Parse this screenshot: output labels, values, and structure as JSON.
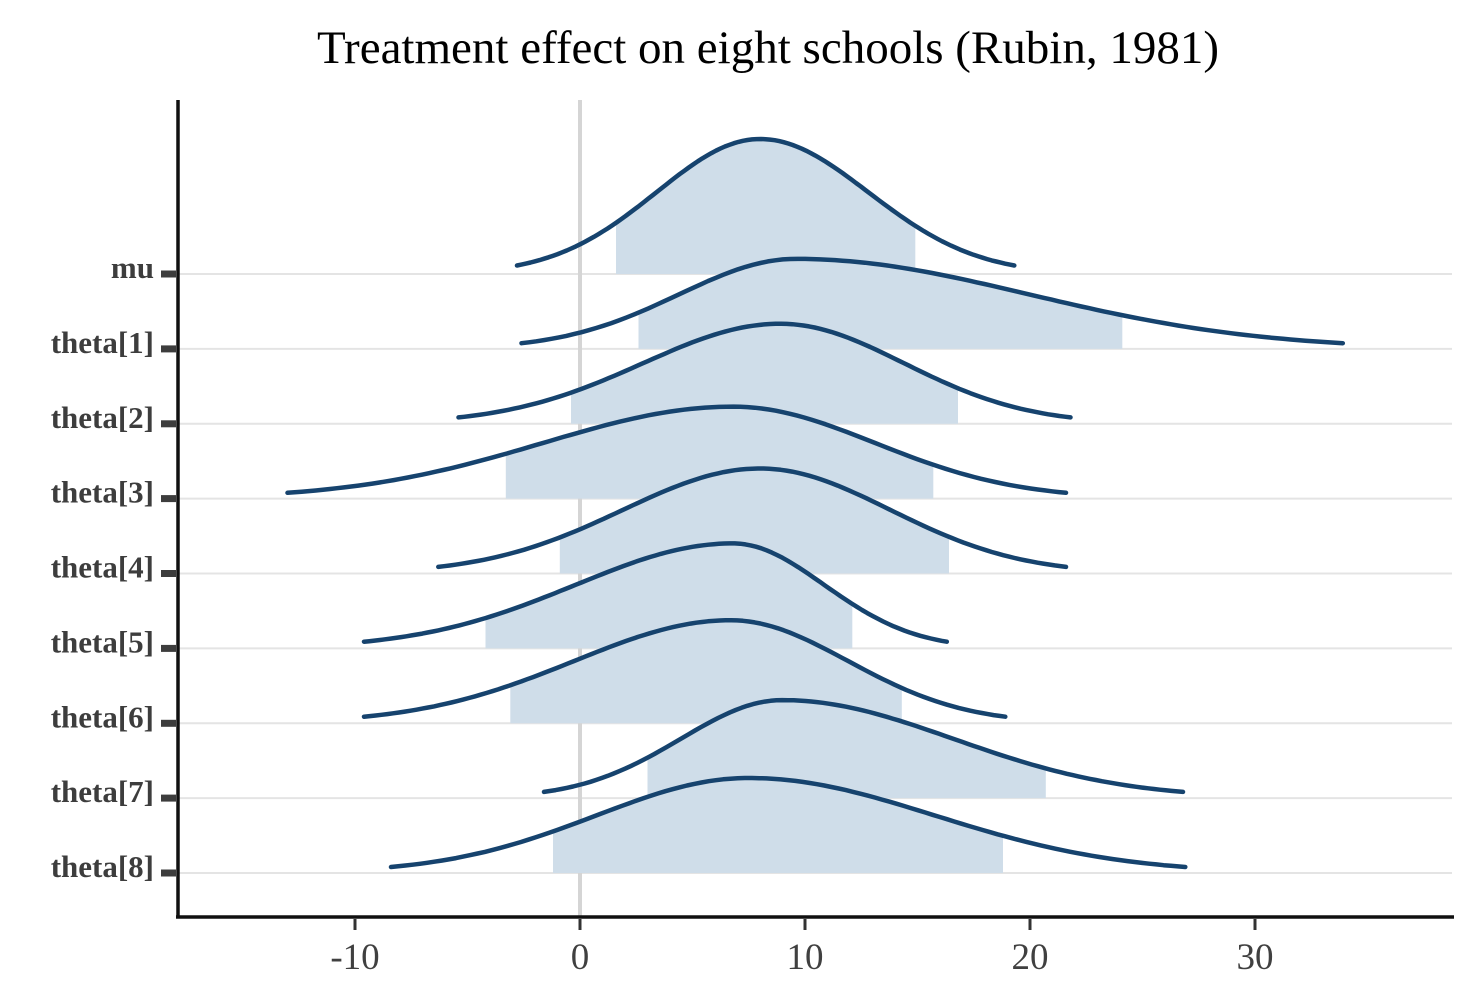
{
  "chart_data": {
    "type": "area",
    "variant": "ridgeline-density",
    "title": "Treatment effect on eight schools (Rubin, 1981)",
    "xlabel": "",
    "ylabel": "",
    "legend": "none",
    "grid": {
      "horizontal_row_lines": true,
      "vertical_zero_line": true
    },
    "x_ticks": [
      -10,
      0,
      10,
      20,
      30
    ],
    "xlim": [
      -17.9,
      38.8
    ],
    "categories": [
      "mu",
      "theta[1]",
      "theta[2]",
      "theta[3]",
      "theta[4]",
      "theta[5]",
      "theta[6]",
      "theta[7]",
      "theta[8]"
    ],
    "series": [
      {
        "name": "mu",
        "mode": 8.0,
        "range": [
          -2.8,
          19.3
        ],
        "interval80": [
          1.6,
          14.9
        ],
        "peak_h": 135
      },
      {
        "name": "theta[1]",
        "mode": 9.6,
        "range": [
          -2.6,
          33.9
        ],
        "interval80": [
          2.6,
          24.1
        ],
        "peak_h": 90
      },
      {
        "name": "theta[2]",
        "mode": 8.9,
        "range": [
          -5.4,
          21.8
        ],
        "interval80": [
          -0.4,
          16.8
        ],
        "peak_h": 100
      },
      {
        "name": "theta[3]",
        "mode": 6.8,
        "range": [
          -13.0,
          21.6
        ],
        "interval80": [
          -3.3,
          15.7
        ],
        "peak_h": 92
      },
      {
        "name": "theta[4]",
        "mode": 8.0,
        "range": [
          -6.3,
          21.6
        ],
        "interval80": [
          -0.9,
          16.4
        ],
        "peak_h": 105
      },
      {
        "name": "theta[5]",
        "mode": 6.8,
        "range": [
          -9.6,
          16.3
        ],
        "interval80": [
          -4.2,
          12.1
        ],
        "peak_h": 105
      },
      {
        "name": "theta[6]",
        "mode": 6.7,
        "range": [
          -9.6,
          18.9
        ],
        "interval80": [
          -3.1,
          14.3
        ],
        "peak_h": 103
      },
      {
        "name": "theta[7]",
        "mode": 9.0,
        "range": [
          -1.6,
          26.8
        ],
        "interval80": [
          3.0,
          20.7
        ],
        "peak_h": 98
      },
      {
        "name": "theta[8]",
        "mode": 7.5,
        "range": [
          -8.4,
          26.9
        ],
        "interval80": [
          -1.2,
          18.8
        ],
        "peak_h": 95
      }
    ]
  },
  "colors": {
    "curve": "#16436e",
    "fill": "#cfdde9",
    "grid": "#e4e4e4",
    "zero_line": "#d5d5d5",
    "axis": "#101010",
    "tick_text": "#404040",
    "category_text": "#3d3d3d",
    "title_text": "#000000"
  }
}
